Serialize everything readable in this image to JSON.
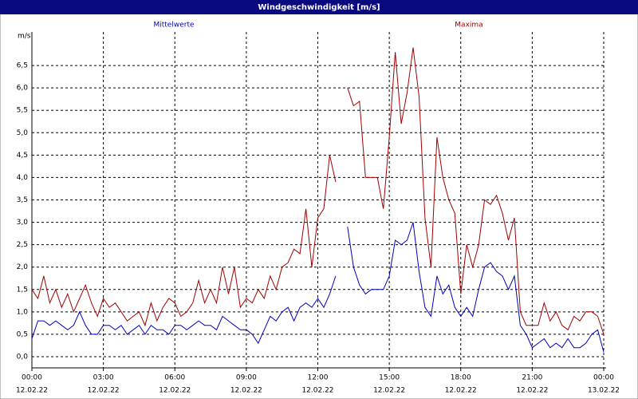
{
  "chart_data": {
    "type": "line",
    "title": "Windgeschwindigkeit [m/s]",
    "ylabel": "m/s",
    "x": [
      0,
      0.25,
      0.5,
      0.75,
      1,
      1.25,
      1.5,
      1.75,
      2,
      2.25,
      2.5,
      2.75,
      3,
      3.25,
      3.5,
      3.75,
      4,
      4.25,
      4.5,
      4.75,
      5,
      5.25,
      5.5,
      5.75,
      6,
      6.25,
      6.5,
      6.75,
      7,
      7.25,
      7.5,
      7.75,
      8,
      8.25,
      8.5,
      8.75,
      9,
      9.25,
      9.5,
      9.75,
      10,
      10.25,
      10.5,
      10.75,
      11,
      11.25,
      11.5,
      11.75,
      12,
      12.25,
      12.5,
      12.75,
      13,
      13.25,
      13.5,
      13.75,
      14,
      14.25,
      14.5,
      14.75,
      15,
      15.25,
      15.5,
      15.75,
      16,
      16.25,
      16.5,
      16.75,
      17,
      17.25,
      17.5,
      17.75,
      18,
      18.25,
      18.5,
      18.75,
      19,
      19.25,
      19.5,
      19.75,
      20,
      20.25,
      20.5,
      20.75,
      21,
      21.25,
      21.5,
      21.75,
      22,
      22.25,
      22.5,
      22.75,
      23,
      23.25,
      23.5,
      23.75,
      24
    ],
    "series": [
      {
        "name": "Mittelwerte",
        "color": "#0000c0",
        "values": [
          0.4,
          0.8,
          0.8,
          0.7,
          0.8,
          0.7,
          0.6,
          0.7,
          1.0,
          0.7,
          0.5,
          0.5,
          0.7,
          0.7,
          0.6,
          0.7,
          0.5,
          0.6,
          0.7,
          0.5,
          0.7,
          0.6,
          0.6,
          0.5,
          0.7,
          0.7,
          0.6,
          0.7,
          0.8,
          0.7,
          0.7,
          0.6,
          0.9,
          0.8,
          0.7,
          0.6,
          0.6,
          0.5,
          0.3,
          0.6,
          0.9,
          0.8,
          1.0,
          1.1,
          0.8,
          1.1,
          1.2,
          1.1,
          1.3,
          1.1,
          1.4,
          1.8,
          null,
          2.9,
          2.0,
          1.6,
          1.4,
          1.5,
          1.5,
          1.5,
          1.8,
          2.6,
          2.5,
          2.6,
          3.0,
          1.9,
          1.1,
          0.9,
          1.8,
          1.4,
          1.6,
          1.1,
          0.9,
          1.1,
          0.9,
          1.5,
          2.0,
          2.1,
          1.9,
          1.8,
          1.5,
          1.8,
          0.7,
          0.5,
          0.2,
          0.3,
          0.4,
          0.2,
          0.3,
          0.2,
          0.4,
          0.2,
          0.2,
          0.3,
          0.5,
          0.6,
          0.1
        ]
      },
      {
        "name": "Maxima",
        "color": "#a00000",
        "values": [
          1.5,
          1.3,
          1.8,
          1.2,
          1.5,
          1.1,
          1.4,
          1.0,
          1.3,
          1.6,
          1.2,
          0.9,
          1.3,
          1.1,
          1.2,
          1.0,
          0.8,
          0.9,
          1.0,
          0.7,
          1.2,
          0.8,
          1.1,
          1.3,
          1.2,
          0.9,
          1.0,
          1.2,
          1.7,
          1.2,
          1.5,
          1.2,
          2.0,
          1.4,
          2.0,
          1.1,
          1.3,
          1.2,
          1.5,
          1.3,
          1.8,
          1.5,
          2.0,
          2.1,
          2.4,
          2.3,
          3.3,
          2.0,
          3.1,
          3.3,
          4.5,
          3.9,
          null,
          6.0,
          5.6,
          5.7,
          4.0,
          4.0,
          4.0,
          3.3,
          4.9,
          6.8,
          5.2,
          5.9,
          6.9,
          5.8,
          3.1,
          2.0,
          4.9,
          4.0,
          3.5,
          3.2,
          1.4,
          2.5,
          2.0,
          2.5,
          3.5,
          3.4,
          3.6,
          3.2,
          2.6,
          3.1,
          1.0,
          0.7,
          0.7,
          0.7,
          1.2,
          0.8,
          1.0,
          0.7,
          0.6,
          0.9,
          0.8,
          1.0,
          1.0,
          0.9,
          0.5
        ]
      }
    ],
    "xlim": [
      0,
      24
    ],
    "xticks": [
      {
        "value": 0,
        "label": "00:00",
        "date": "12.02.22"
      },
      {
        "value": 3,
        "label": "03:00",
        "date": "12.02.22"
      },
      {
        "value": 6,
        "label": "06:00",
        "date": "12.02.22"
      },
      {
        "value": 9,
        "label": "09:00",
        "date": "12.02.22"
      },
      {
        "value": 12,
        "label": "12:00",
        "date": "12.02.22"
      },
      {
        "value": 15,
        "label": "15:00",
        "date": "12.02.22"
      },
      {
        "value": 18,
        "label": "18:00",
        "date": "12.02.22"
      },
      {
        "value": 21,
        "label": "21:00",
        "date": "12.02.22"
      },
      {
        "value": 24,
        "label": "00:00",
        "date": "13.02.22"
      }
    ],
    "ylim": [
      -0.25,
      7.25
    ],
    "yticks": [
      {
        "value": 0,
        "label": "0,0"
      },
      {
        "value": 0.5,
        "label": "0,5"
      },
      {
        "value": 1,
        "label": "1,0"
      },
      {
        "value": 1.5,
        "label": "1,5"
      },
      {
        "value": 2,
        "label": "2,0"
      },
      {
        "value": 2.5,
        "label": "2,5"
      },
      {
        "value": 3,
        "label": "3,0"
      },
      {
        "value": 3.5,
        "label": "3,5"
      },
      {
        "value": 4,
        "label": "4,0"
      },
      {
        "value": 4.5,
        "label": "4,5"
      },
      {
        "value": 5,
        "label": "5,0"
      },
      {
        "value": 5.5,
        "label": "5,5"
      },
      {
        "value": 6,
        "label": "6,0"
      },
      {
        "value": 6.5,
        "label": "6,5"
      }
    ],
    "grid": true
  }
}
